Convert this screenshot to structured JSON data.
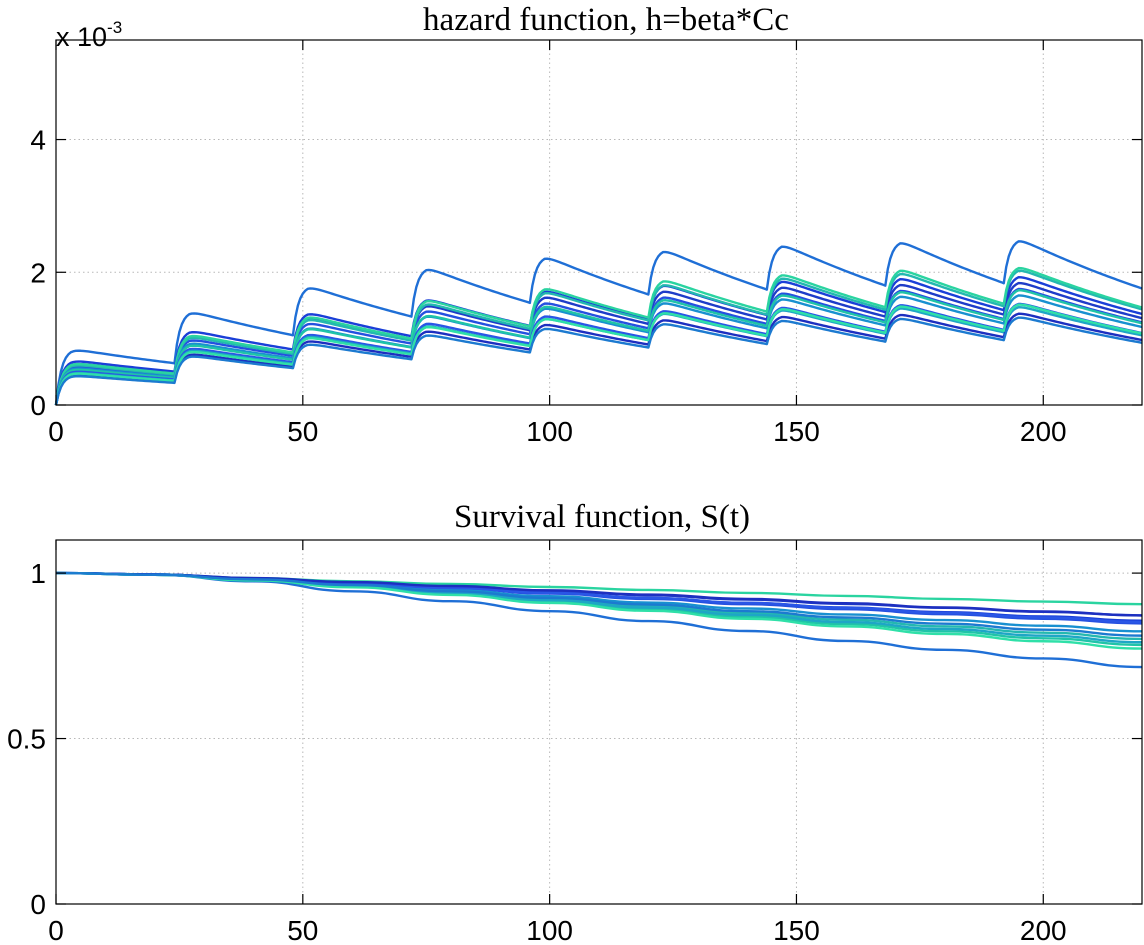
{
  "chart_data": [
    {
      "type": "line",
      "title": "hazard function, h=beta*Cc",
      "xlabel": "",
      "ylabel": "",
      "y_multiplier_base": "x 10",
      "y_multiplier_exponent": "-3",
      "xlim": [
        0,
        220
      ],
      "ylim": [
        0,
        5.5
      ],
      "xticks": [
        0,
        50,
        100,
        150,
        200
      ],
      "yticks": [
        0,
        2,
        4
      ],
      "grid": true,
      "dose_times": [
        0,
        24,
        48,
        72,
        96,
        120,
        144,
        168,
        192
      ],
      "series": [
        {
          "color": "#1f6fd6",
          "peaks": [
            0.85,
            1.42,
            1.8,
            2.08,
            2.25,
            2.35,
            2.43,
            2.48,
            2.51
          ]
        },
        {
          "color": "#1a3fd8",
          "peaks": [
            0.68,
            1.13,
            1.4,
            1.61,
            1.74,
            1.83,
            1.89,
            1.93,
            1.96
          ]
        },
        {
          "color": "#1e3cc8",
          "peaks": [
            0.64,
            1.06,
            1.32,
            1.52,
            1.65,
            1.74,
            1.8,
            1.84,
            1.87
          ]
        },
        {
          "color": "#2550e0",
          "peaks": [
            0.6,
            1.0,
            1.25,
            1.44,
            1.56,
            1.65,
            1.71,
            1.75,
            1.78
          ]
        },
        {
          "color": "#23b8b0",
          "peaks": [
            0.62,
            1.04,
            1.31,
            1.55,
            1.72,
            1.84,
            1.94,
            2.01,
            2.06
          ]
        },
        {
          "color": "#2ad4a0",
          "peaks": [
            0.64,
            1.07,
            1.35,
            1.6,
            1.78,
            1.9,
            1.99,
            2.06,
            2.1
          ]
        },
        {
          "color": "#1890d0",
          "peaks": [
            0.57,
            0.95,
            1.18,
            1.36,
            1.48,
            1.56,
            1.62,
            1.66,
            1.68
          ]
        },
        {
          "color": "#20c4a8",
          "peaks": [
            0.55,
            0.92,
            1.17,
            1.37,
            1.51,
            1.61,
            1.68,
            1.73,
            1.76
          ]
        },
        {
          "color": "#2a56e6",
          "peaks": [
            0.52,
            0.87,
            1.08,
            1.25,
            1.36,
            1.44,
            1.49,
            1.53,
            1.55
          ]
        },
        {
          "color": "#1ea6c6",
          "peaks": [
            0.5,
            0.84,
            1.05,
            1.21,
            1.32,
            1.4,
            1.45,
            1.48,
            1.5
          ]
        },
        {
          "color": "#1d2fc0",
          "peaks": [
            0.47,
            0.78,
            0.98,
            1.13,
            1.23,
            1.3,
            1.35,
            1.38,
            1.4
          ]
        },
        {
          "color": "#2fe0a8",
          "peaks": [
            0.49,
            0.82,
            1.03,
            1.2,
            1.32,
            1.41,
            1.47,
            1.51,
            1.54
          ]
        },
        {
          "color": "#1c7ad0",
          "peaks": [
            0.45,
            0.75,
            0.93,
            1.07,
            1.17,
            1.24,
            1.29,
            1.32,
            1.34
          ]
        }
      ]
    },
    {
      "type": "line",
      "title": "Survival function, S(t)",
      "xlabel": "",
      "ylabel": "",
      "xlim": [
        0,
        220
      ],
      "ylim": [
        0,
        1.1
      ],
      "xticks": [
        0,
        50,
        100,
        150,
        200
      ],
      "yticks": [
        0,
        0.5,
        1
      ],
      "grid": true,
      "x": [
        0,
        20,
        40,
        60,
        80,
        100,
        120,
        140,
        160,
        180,
        200,
        220
      ],
      "series": [
        {
          "color": "#1f6fd6",
          "values": [
            1.0,
            0.995,
            0.975,
            0.945,
            0.915,
            0.885,
            0.855,
            0.825,
            0.795,
            0.768,
            0.742,
            0.716
          ]
        },
        {
          "color": "#2ad4a0",
          "values": [
            1.0,
            0.996,
            0.985,
            0.975,
            0.967,
            0.958,
            0.949,
            0.94,
            0.931,
            0.922,
            0.914,
            0.906
          ]
        },
        {
          "color": "#1a3fd8",
          "values": [
            1.0,
            0.996,
            0.983,
            0.97,
            0.955,
            0.94,
            0.925,
            0.91,
            0.896,
            0.882,
            0.869,
            0.856
          ]
        },
        {
          "color": "#1e3cc8",
          "values": [
            1.0,
            0.996,
            0.984,
            0.972,
            0.959,
            0.946,
            0.933,
            0.92,
            0.907,
            0.895,
            0.883,
            0.872
          ]
        },
        {
          "color": "#2550e0",
          "values": [
            1.0,
            0.996,
            0.983,
            0.969,
            0.954,
            0.938,
            0.922,
            0.906,
            0.891,
            0.876,
            0.862,
            0.848
          ]
        },
        {
          "color": "#23b8b0",
          "values": [
            1.0,
            0.995,
            0.98,
            0.962,
            0.942,
            0.921,
            0.9,
            0.879,
            0.859,
            0.839,
            0.82,
            0.801
          ]
        },
        {
          "color": "#20c4a8",
          "values": [
            1.0,
            0.995,
            0.979,
            0.959,
            0.937,
            0.914,
            0.891,
            0.868,
            0.846,
            0.824,
            0.803,
            0.783
          ]
        },
        {
          "color": "#1890d0",
          "values": [
            1.0,
            0.996,
            0.982,
            0.966,
            0.948,
            0.93,
            0.911,
            0.893,
            0.875,
            0.858,
            0.841,
            0.824
          ]
        },
        {
          "color": "#2a56e6",
          "values": [
            1.0,
            0.996,
            0.984,
            0.97,
            0.955,
            0.94,
            0.925,
            0.91,
            0.895,
            0.88,
            0.866,
            0.852
          ]
        },
        {
          "color": "#1ea6c6",
          "values": [
            1.0,
            0.995,
            0.98,
            0.961,
            0.94,
            0.918,
            0.896,
            0.874,
            0.852,
            0.831,
            0.811,
            0.791
          ]
        },
        {
          "color": "#1d2fc0",
          "values": [
            1.0,
            0.996,
            0.985,
            0.973,
            0.961,
            0.948,
            0.935,
            0.922,
            0.909,
            0.896,
            0.884,
            0.872
          ]
        },
        {
          "color": "#2fe0a8",
          "values": [
            1.0,
            0.995,
            0.978,
            0.957,
            0.934,
            0.91,
            0.886,
            0.862,
            0.839,
            0.816,
            0.794,
            0.772
          ]
        },
        {
          "color": "#1c7ad0",
          "values": [
            1.0,
            0.995,
            0.981,
            0.964,
            0.945,
            0.925,
            0.905,
            0.885,
            0.866,
            0.847,
            0.829,
            0.811
          ]
        }
      ]
    }
  ]
}
